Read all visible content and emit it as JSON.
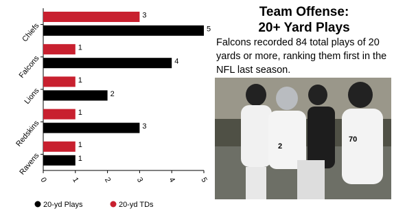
{
  "chart_data": {
    "type": "bar",
    "orientation": "horizontal",
    "categories": [
      "Chiefs",
      "Falcons",
      "Lions",
      "Redskins",
      "Ravens"
    ],
    "series": [
      {
        "name": "20-yd TDs",
        "color": "#c8202f",
        "values": [
          3,
          1,
          1,
          1,
          1
        ]
      },
      {
        "name": "20-yd Plays",
        "color": "#000000",
        "values": [
          5,
          4,
          2,
          3,
          1
        ]
      }
    ],
    "xlim": [
      0,
      5
    ],
    "xticks": [
      0,
      1,
      2,
      3,
      4,
      5
    ]
  },
  "sidebar": {
    "title": "Team Offense:\n20+ Yard Plays",
    "text": "Falcons recorded 84 total plays of 20 yards or more, ranking them first in the NFL last season."
  }
}
